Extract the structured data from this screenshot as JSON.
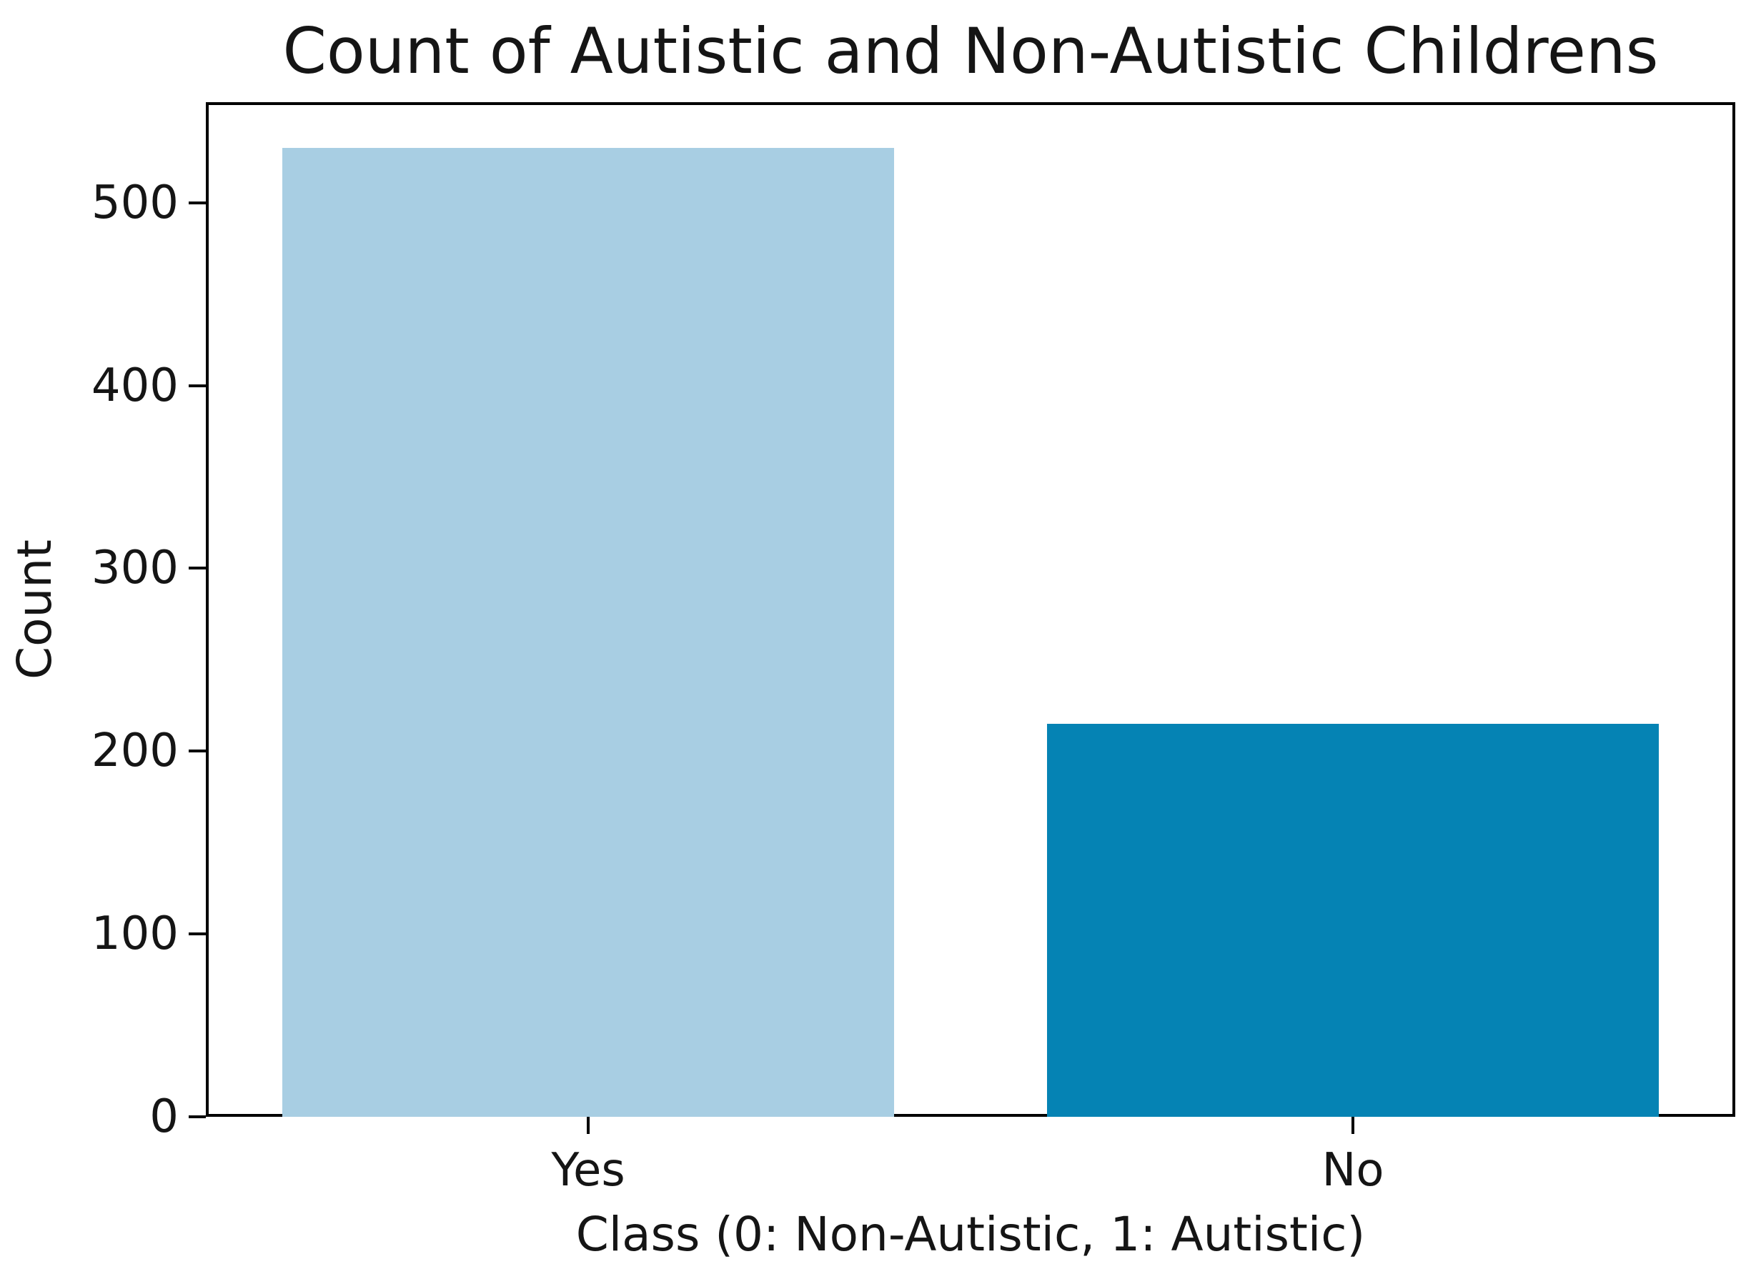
{
  "chart_data": {
    "type": "bar",
    "title": "Count of Autistic and Non-Autistic Childrens",
    "xlabel": "Class (0: Non-Autistic, 1: Autistic)",
    "ylabel": "Count",
    "categories": [
      "Yes",
      "No"
    ],
    "values": [
      530,
      215
    ],
    "series": [
      {
        "name": "Count",
        "values": [
          530,
          215
        ]
      }
    ],
    "bar_colors": [
      "#a8cee3",
      "#0583b4"
    ],
    "bar_width_fraction": 0.8,
    "ylim": [
      0,
      555
    ],
    "yticks": [
      0,
      100,
      200,
      300,
      400,
      500
    ],
    "grid": false,
    "legend_position": "none",
    "background_color": "#ffffff",
    "spine_color": "#000000",
    "text_color": "#151515"
  }
}
